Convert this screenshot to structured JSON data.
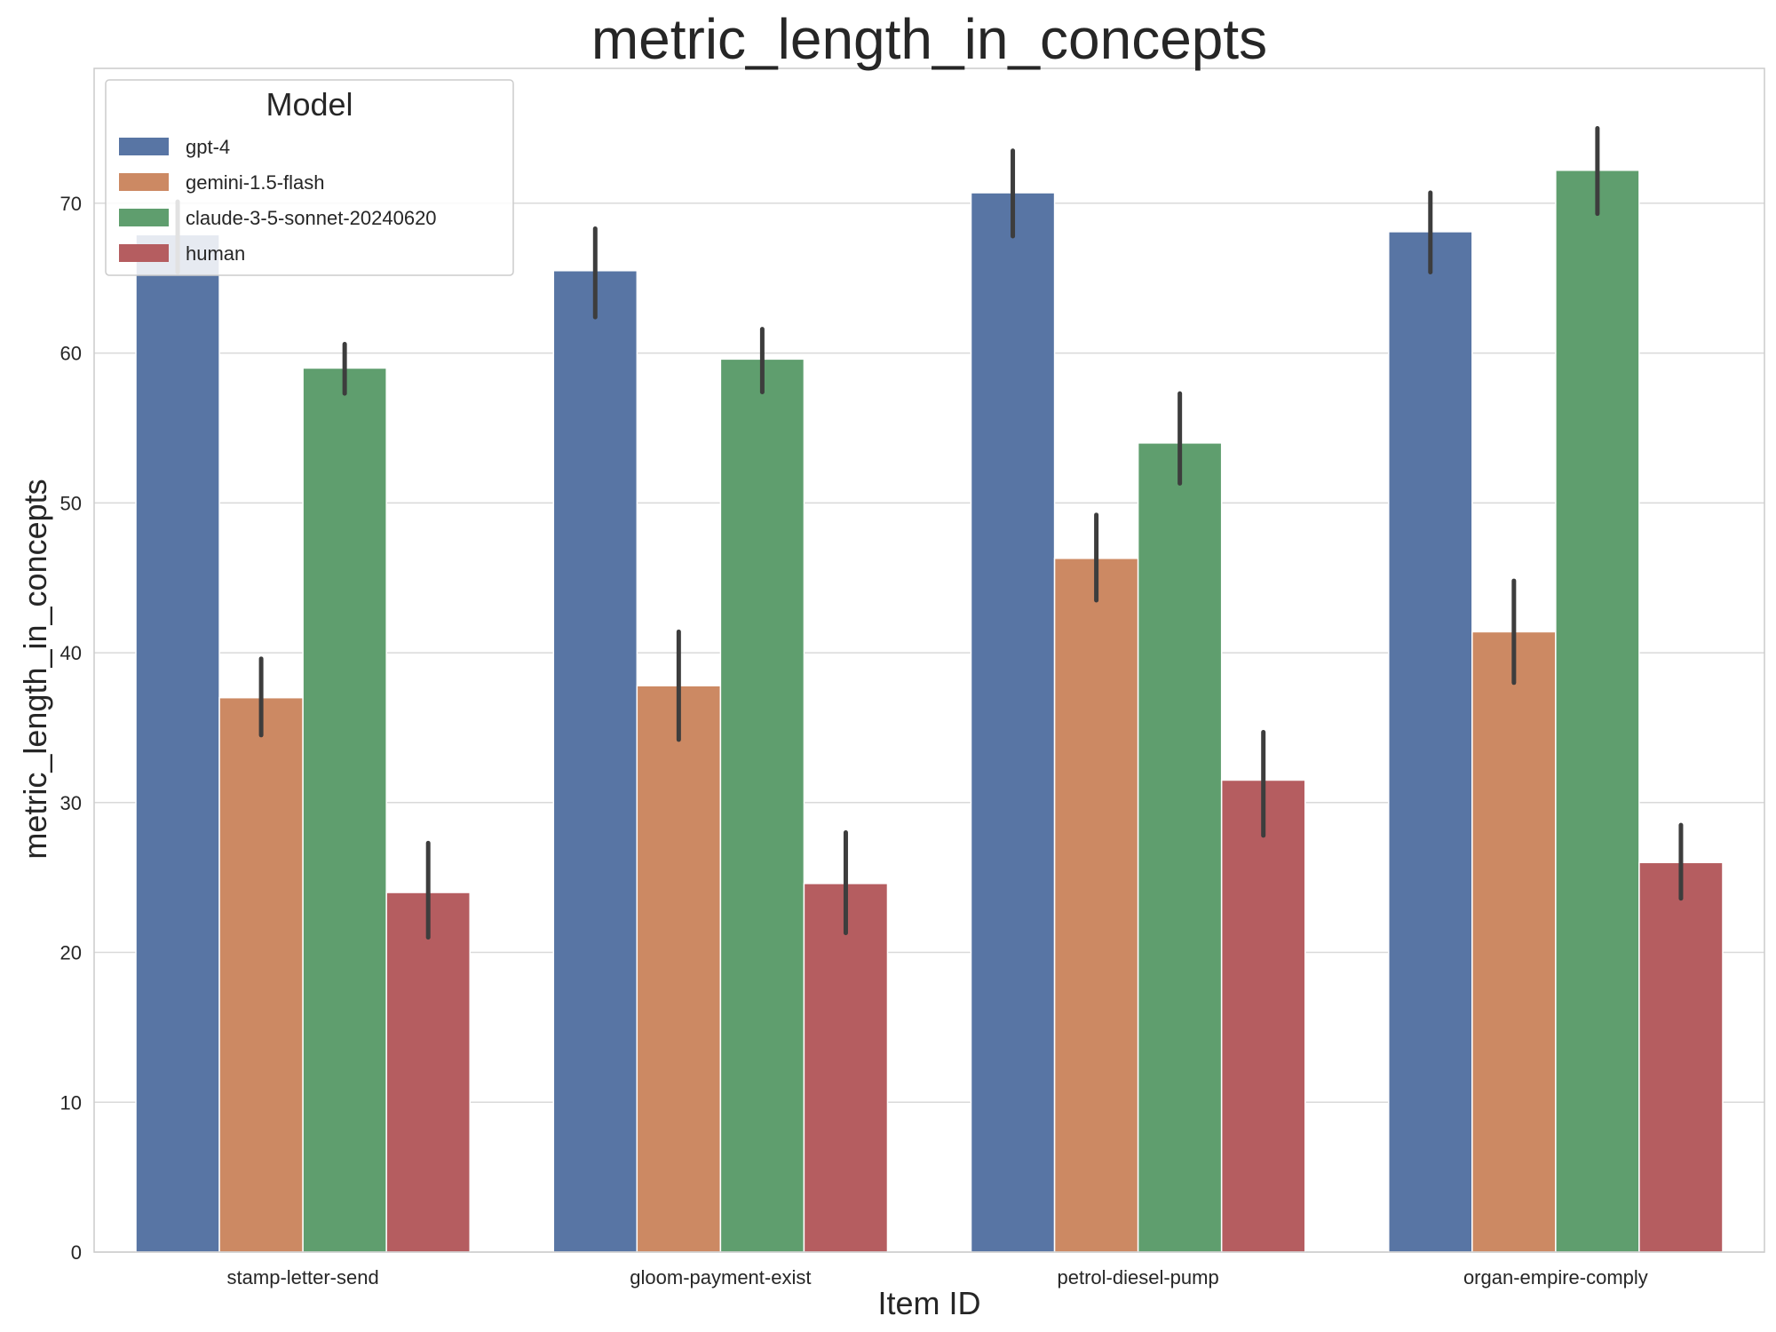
{
  "chart_data": {
    "type": "bar",
    "title": "metric_length_in_concepts",
    "xlabel": "Item ID",
    "ylabel": "metric_length_in_concepts",
    "categories": [
      "stamp-letter-send",
      "gloom-payment-exist",
      "petrol-diesel-pump",
      "organ-empire-comply"
    ],
    "ylim": [
      0,
      79
    ],
    "yticks": [
      0,
      10,
      20,
      30,
      40,
      50,
      60,
      70
    ],
    "grid": "horizontal",
    "legend": {
      "title": "Model",
      "placement": "top-left"
    },
    "error_bars": true,
    "series": [
      {
        "name": "gpt-4",
        "color": "#5875a4",
        "values": [
          67.9,
          65.5,
          70.7,
          68.1
        ],
        "err_low": [
          65.4,
          62.4,
          67.8,
          65.4
        ],
        "err_high": [
          70.1,
          68.3,
          73.5,
          70.7
        ]
      },
      {
        "name": "gemini-1.5-flash",
        "color": "#cc8963",
        "values": [
          37.0,
          37.8,
          46.3,
          41.4
        ],
        "err_low": [
          34.5,
          34.2,
          43.5,
          38.0
        ],
        "err_high": [
          39.6,
          41.4,
          49.2,
          44.8
        ]
      },
      {
        "name": "claude-3-5-sonnet-20240620",
        "color": "#5f9e6e",
        "values": [
          59.0,
          59.6,
          54.0,
          72.2
        ],
        "err_low": [
          57.3,
          57.4,
          51.3,
          69.3
        ],
        "err_high": [
          60.6,
          61.6,
          57.3,
          75.0
        ]
      },
      {
        "name": "human",
        "color": "#b55d60",
        "values": [
          24.0,
          24.6,
          31.5,
          26.0
        ],
        "err_low": [
          21.0,
          21.3,
          27.8,
          23.6
        ],
        "err_high": [
          27.3,
          28.0,
          34.7,
          28.5
        ]
      }
    ]
  }
}
